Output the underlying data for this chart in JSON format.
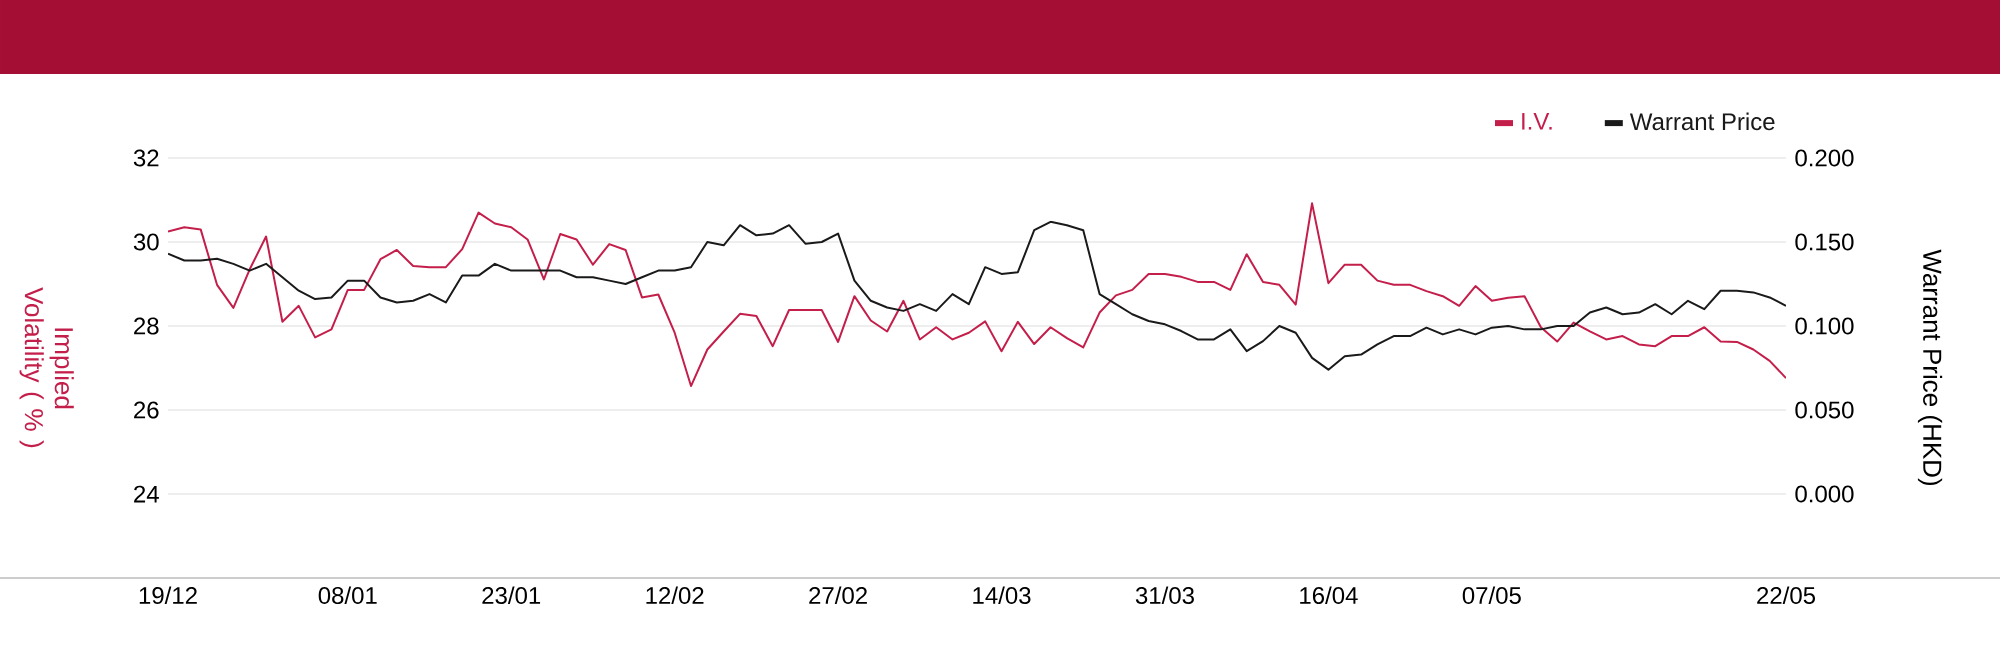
{
  "chart_data": {
    "type": "line",
    "categories": [
      "19/12",
      null,
      null,
      null,
      null,
      null,
      null,
      null,
      null,
      null,
      null,
      "08/01",
      null,
      null,
      null,
      null,
      null,
      null,
      null,
      null,
      null,
      "23/01",
      null,
      null,
      null,
      null,
      null,
      null,
      null,
      null,
      null,
      "12/02",
      null,
      null,
      null,
      null,
      null,
      null,
      null,
      null,
      null,
      "27/02",
      null,
      null,
      null,
      null,
      null,
      null,
      null,
      null,
      null,
      "14/03",
      null,
      null,
      null,
      null,
      null,
      null,
      null,
      null,
      null,
      "31/03",
      null,
      null,
      null,
      null,
      null,
      null,
      null,
      null,
      null,
      "16/04",
      null,
      null,
      null,
      null,
      null,
      null,
      null,
      null,
      null,
      "07/05",
      null,
      null,
      null,
      null,
      null,
      null,
      null,
      null,
      null,
      null,
      null,
      null,
      null,
      null,
      null,
      null,
      null,
      "22/05"
    ],
    "series": [
      {
        "name": "I.V.",
        "color": "#c41e4a",
        "values": [
          30.25,
          30.35,
          30.3,
          28.98,
          28.43,
          29.35,
          30.13,
          28.1,
          28.48,
          27.73,
          27.92,
          28.86,
          28.86,
          29.59,
          29.81,
          29.43,
          29.4,
          29.4,
          29.83,
          30.7,
          30.44,
          30.35,
          30.06,
          29.11,
          30.19,
          30.06,
          29.46,
          29.95,
          29.81,
          28.68,
          28.75,
          27.84,
          26.57,
          27.44,
          27.87,
          28.29,
          28.24,
          27.52,
          28.38,
          28.38,
          28.38,
          27.62,
          28.71,
          28.13,
          27.87,
          28.6,
          27.68,
          27.97,
          27.68,
          27.84,
          28.11,
          27.4,
          28.1,
          27.57,
          27.97,
          27.71,
          27.49,
          28.32,
          28.73,
          28.86,
          29.24,
          29.24,
          29.17,
          29.05,
          29.05,
          28.86,
          29.71,
          29.05,
          28.98,
          28.51,
          30.92,
          29.02,
          29.46,
          29.46,
          29.08,
          28.98,
          28.98,
          28.83,
          28.71,
          28.48,
          28.95,
          28.6,
          28.67,
          28.71,
          27.97,
          27.63,
          28.08,
          27.87,
          27.68,
          27.76,
          27.56,
          27.52,
          27.76,
          27.76,
          27.97,
          27.63,
          27.62,
          27.44,
          27.17,
          26.76
        ]
      },
      {
        "name": "Warrant Price",
        "color": "#1a1a1a",
        "axis": "y2",
        "values": [
          0.143,
          0.139,
          0.139,
          0.14,
          0.137,
          0.133,
          0.137,
          0.129,
          0.121,
          0.116,
          0.117,
          0.127,
          0.127,
          0.117,
          0.114,
          0.115,
          0.119,
          0.114,
          0.13,
          0.13,
          0.137,
          0.133,
          0.133,
          0.133,
          0.133,
          0.129,
          0.129,
          0.127,
          0.125,
          0.129,
          0.133,
          0.133,
          0.135,
          0.15,
          0.148,
          0.16,
          0.154,
          0.155,
          0.16,
          0.149,
          0.15,
          0.155,
          0.127,
          0.115,
          0.111,
          0.109,
          0.113,
          0.109,
          0.119,
          0.113,
          0.135,
          0.131,
          0.132,
          0.157,
          0.162,
          0.16,
          0.157,
          0.119,
          0.113,
          0.107,
          0.103,
          0.101,
          0.097,
          0.092,
          0.092,
          0.098,
          0.085,
          0.091,
          0.1,
          0.096,
          0.081,
          0.074,
          0.082,
          0.083,
          0.089,
          0.094,
          0.094,
          0.099,
          0.095,
          0.098,
          0.095,
          0.099,
          0.1,
          0.098,
          0.098,
          0.1,
          0.1,
          0.108,
          0.111,
          0.107,
          0.108,
          0.113,
          0.107,
          0.115,
          0.11,
          0.121,
          0.121,
          0.12,
          0.117,
          0.112
        ]
      }
    ],
    "ylabel": "Implied Volatility ( % )",
    "y2label": "Warrant Price (HKD)",
    "ylim": [
      22,
      32
    ],
    "yticks": [
      24,
      26,
      28,
      30,
      32
    ],
    "y2lim": [
      -0.05,
      0.2
    ],
    "y2ticks": [
      {
        "value": 0,
        "label": "0.000"
      },
      {
        "value": 0.05,
        "label": "0.050"
      },
      {
        "value": 0.1,
        "label": "0.100"
      },
      {
        "value": 0.15,
        "label": "0.150"
      },
      {
        "value": 0.2,
        "label": "0.200"
      }
    ],
    "grid": "y",
    "legend": "top right"
  }
}
